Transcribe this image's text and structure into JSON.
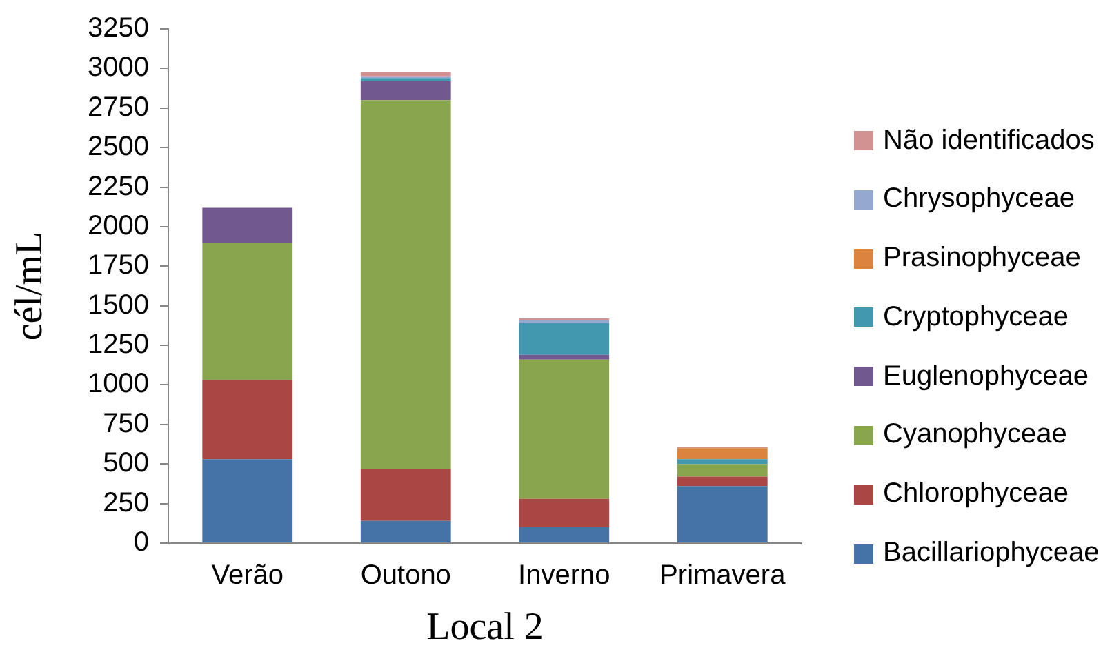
{
  "chart_data": {
    "type": "bar",
    "stacked": true,
    "xlabel": "Local 2",
    "ylabel": "cél/mL",
    "categories": [
      "Verão",
      "Outono",
      "Inverno",
      "Primavera"
    ],
    "ylim": [
      0,
      3250
    ],
    "yticks": [
      0,
      250,
      500,
      750,
      1000,
      1250,
      1500,
      1750,
      2000,
      2250,
      2500,
      2750,
      3000,
      3250
    ],
    "grid": false,
    "legend": "right",
    "series": [
      {
        "name": "Bacillariophyceae",
        "color": "#4572a7",
        "values": [
          530,
          140,
          100,
          360
        ]
      },
      {
        "name": "Chlorophyceae",
        "color": "#aa4643",
        "values": [
          500,
          330,
          180,
          60
        ]
      },
      {
        "name": "Cyanophyceae",
        "color": "#89a54e",
        "values": [
          870,
          2330,
          880,
          80
        ]
      },
      {
        "name": "Euglenophyceae",
        "color": "#71588f",
        "values": [
          220,
          120,
          30,
          0
        ]
      },
      {
        "name": "Cryptophyceae",
        "color": "#4198af",
        "values": [
          0,
          20,
          200,
          30
        ]
      },
      {
        "name": "Prasinophyceae",
        "color": "#db843d",
        "values": [
          0,
          0,
          0,
          70
        ]
      },
      {
        "name": "Chrysophyceae",
        "color": "#93a9cf",
        "values": [
          0,
          10,
          20,
          0
        ]
      },
      {
        "name": "Não identificados",
        "color": "#d19392",
        "values": [
          0,
          30,
          10,
          10
        ]
      }
    ]
  }
}
